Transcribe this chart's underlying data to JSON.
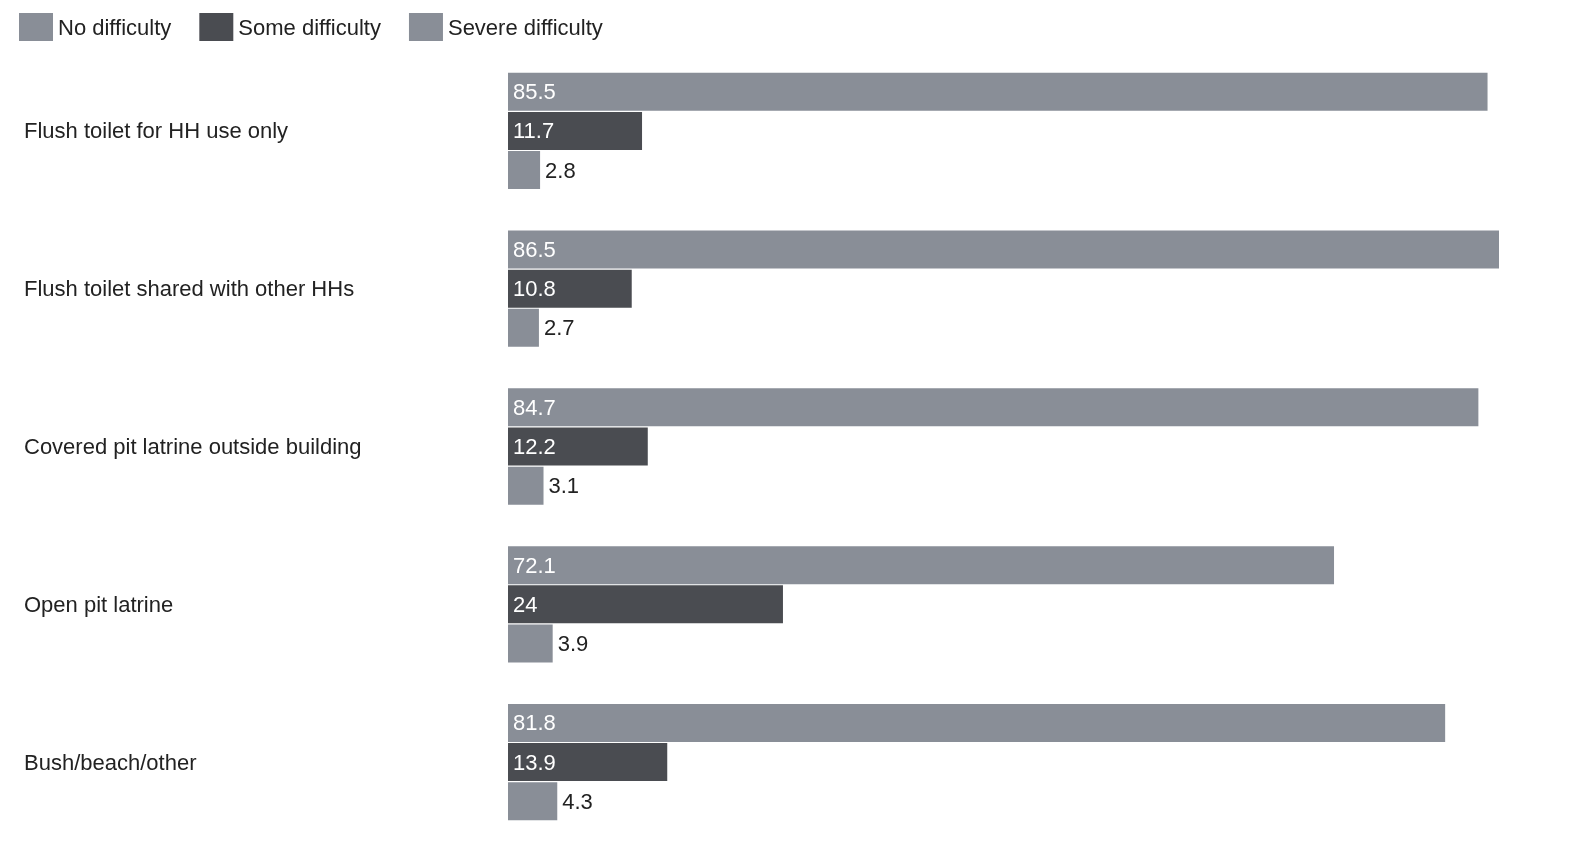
{
  "chart_data": {
    "type": "bar",
    "orientation": "horizontal",
    "categories": [
      "Flush toilet for HH use only",
      "Flush toilet shared with other HHs",
      "Covered pit latrine outside building",
      "Open pit latrine",
      "Bush/beach/other"
    ],
    "series": [
      {
        "name": "No difficulty",
        "color": "#898e97",
        "values": [
          85.5,
          86.5,
          84.7,
          72.1,
          81.8
        ]
      },
      {
        "name": "Some difficulty",
        "color": "#4a4c51",
        "values": [
          11.7,
          10.8,
          12.2,
          24,
          13.9
        ]
      },
      {
        "name": "Severe difficulty",
        "color": "#898e97",
        "values": [
          2.8,
          2.7,
          3.1,
          3.9,
          4.3
        ]
      }
    ],
    "data_labels": true,
    "legend": "top left"
  }
}
